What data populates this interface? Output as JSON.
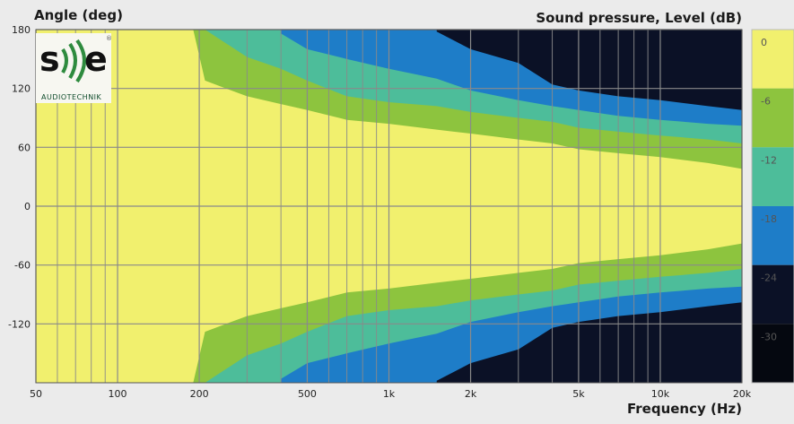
{
  "chart_data": {
    "type": "heatmap",
    "title": "Sound pressure, Level (dB)",
    "xlabel": "Frequency (Hz)",
    "ylabel": "Angle (deg)",
    "x_scale": "log",
    "xlim": [
      50,
      20000
    ],
    "ylim": [
      -180,
      180
    ],
    "grid": true,
    "x_ticks": [
      {
        "value": 50,
        "label": "50"
      },
      {
        "value": 100,
        "label": "100"
      },
      {
        "value": 200,
        "label": "200"
      },
      {
        "value": 500,
        "label": "500"
      },
      {
        "value": 1000,
        "label": "1k"
      },
      {
        "value": 2000,
        "label": "2k"
      },
      {
        "value": 5000,
        "label": "5k"
      },
      {
        "value": 10000,
        "label": "10k"
      },
      {
        "value": 20000,
        "label": "20k"
      }
    ],
    "y_ticks": [
      {
        "value": 180,
        "label": "180"
      },
      {
        "value": 120,
        "label": "120"
      },
      {
        "value": 60,
        "label": "60"
      },
      {
        "value": 0,
        "label": "0"
      },
      {
        "value": -60,
        "label": "-60"
      },
      {
        "value": -120,
        "label": "-120"
      }
    ],
    "colorbar": {
      "levels": [
        {
          "from": 0,
          "to": -6,
          "label": "0",
          "color": "#f1f06e"
        },
        {
          "from": -6,
          "to": -12,
          "label": "-6",
          "color": "#8dc43e"
        },
        {
          "from": -12,
          "to": -18,
          "label": "-12",
          "color": "#4dbd9a"
        },
        {
          "from": -18,
          "to": -24,
          "label": "-18",
          "color": "#1e7dc8"
        },
        {
          "from": -24,
          "to": -30,
          "label": "-24",
          "color": "#0b1126"
        },
        {
          "from": -30,
          "to": -36,
          "label": "-30",
          "color": "#050810"
        }
      ]
    },
    "contours": {
      "freq": [
        50,
        190,
        210,
        300,
        400,
        500,
        700,
        1000,
        1500,
        2000,
        3000,
        4000,
        5000,
        7000,
        10000,
        15000,
        20000
      ],
      "minus6_angle": [
        180,
        180,
        128,
        112,
        104,
        98,
        88,
        84,
        78,
        74,
        68,
        64,
        58,
        54,
        50,
        44,
        38
      ],
      "minus12_angle": [
        null,
        null,
        180,
        152,
        140,
        128,
        112,
        106,
        102,
        96,
        90,
        86,
        80,
        76,
        72,
        68,
        64
      ],
      "minus18_angle": [
        null,
        null,
        null,
        null,
        176,
        160,
        150,
        140,
        130,
        118,
        108,
        102,
        98,
        92,
        88,
        84,
        82
      ],
      "minus24_angle": [
        null,
        null,
        null,
        null,
        null,
        null,
        null,
        null,
        178,
        160,
        146,
        124,
        118,
        112,
        108,
        102,
        98
      ]
    }
  },
  "logo": {
    "mark": "s))e",
    "subtext": "AUDIOTECHNIK",
    "registered": "®"
  },
  "colors": {
    "background": "#ebebeb",
    "grid": "#8a8a8a",
    "logo_green": "#2e8b3e",
    "logo_dark": "#111111"
  }
}
